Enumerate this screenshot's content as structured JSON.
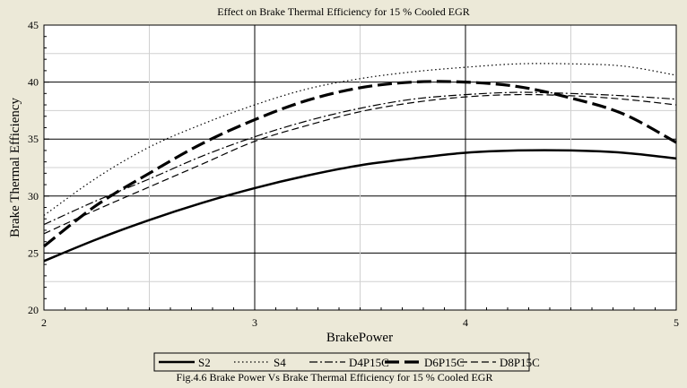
{
  "chart_data": {
    "type": "line",
    "title": "Effect on Brake Thermal Efficiency for 15 % Cooled EGR",
    "xlabel": "BrakePower",
    "ylabel": "Brake Thermal Efficiency",
    "xlim": [
      2,
      5
    ],
    "ylim": [
      20,
      45
    ],
    "x_ticks": [
      "2",
      "3",
      "4",
      "5"
    ],
    "y_ticks": [
      "20",
      "25",
      "30",
      "35",
      "40",
      "45"
    ],
    "grid": true,
    "legend_position": "bottom",
    "caption": "Fig.4.6 Brake Power Vs Brake Thermal Efficiency  for 15 % Cooled EGR",
    "x": [
      2.0,
      2.25,
      2.5,
      2.75,
      3.0,
      3.25,
      3.5,
      3.75,
      4.0,
      4.25,
      4.5,
      4.75,
      5.0
    ],
    "series": [
      {
        "name": "S2",
        "style": "solid-thick",
        "values": [
          24.3,
          26.2,
          27.9,
          29.4,
          30.7,
          31.8,
          32.7,
          33.3,
          33.8,
          34.0,
          34.0,
          33.8,
          33.3
        ]
      },
      {
        "name": "S4",
        "style": "dotted",
        "values": [
          28.3,
          31.6,
          34.3,
          36.3,
          38.0,
          39.4,
          40.3,
          40.9,
          41.3,
          41.6,
          41.6,
          41.4,
          40.6
        ]
      },
      {
        "name": "D4P15C",
        "style": "dash-dot",
        "values": [
          27.5,
          29.6,
          31.5,
          33.5,
          35.2,
          36.6,
          37.7,
          38.5,
          38.9,
          39.1,
          39.0,
          38.8,
          38.5
        ]
      },
      {
        "name": "D6P15C",
        "style": "long-dash-thick",
        "values": [
          25.6,
          29.2,
          32.0,
          34.6,
          36.7,
          38.4,
          39.5,
          40.0,
          40.0,
          39.6,
          38.6,
          37.2,
          34.7
        ]
      },
      {
        "name": "D8P15C",
        "style": "dashed",
        "values": [
          26.7,
          28.8,
          30.8,
          32.8,
          34.8,
          36.2,
          37.4,
          38.2,
          38.7,
          38.9,
          38.8,
          38.5,
          38.0
        ]
      }
    ]
  }
}
